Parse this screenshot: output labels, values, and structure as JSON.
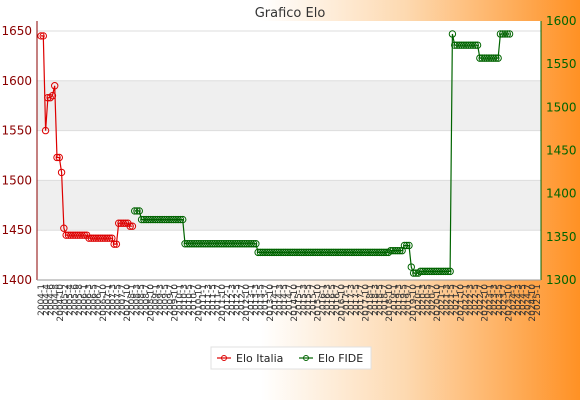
{
  "chart_data": {
    "type": "line",
    "title": "Grafico Elo",
    "xlabel": "",
    "ylabel": "",
    "y_left": {
      "ylim": [
        1400,
        1660
      ],
      "ticks": [
        1400,
        1450,
        1500,
        1550,
        1600,
        1650
      ]
    },
    "y_right": {
      "ylim": [
        1300,
        1600
      ],
      "ticks": [
        1300,
        1350,
        1400,
        1450,
        1500,
        1550,
        1600
      ]
    },
    "grid": true,
    "legend_position": "bottom-center",
    "series": [
      {
        "name": "Elo Italia",
        "color": "#dd0000",
        "axis": "left",
        "start_index": 0,
        "values": [
          1645,
          1645,
          1550,
          1583,
          1583,
          1585,
          1595,
          1523,
          1523,
          1508,
          1452,
          1445,
          1445,
          1445,
          1445,
          1445,
          1445,
          1445,
          1445,
          1445,
          1445,
          1442,
          1442,
          1442,
          1442,
          1442,
          1442,
          1442,
          1442,
          1442,
          1442,
          1442,
          1436,
          1436,
          1457,
          1457,
          1457,
          1457,
          1457,
          1454,
          1454
        ]
      },
      {
        "name": "Elo FIDE",
        "color": "#006400",
        "axis": "right",
        "start_index": 41,
        "values": [
          1380,
          1380,
          1380,
          1370,
          1370,
          1370,
          1370,
          1370,
          1370,
          1370,
          1370,
          1370,
          1370,
          1370,
          1370,
          1370,
          1370,
          1370,
          1370,
          1370,
          1370,
          1370,
          1342,
          1342,
          1342,
          1342,
          1342,
          1342,
          1342,
          1342,
          1342,
          1342,
          1342,
          1342,
          1342,
          1342,
          1342,
          1342,
          1342,
          1342,
          1342,
          1342,
          1342,
          1342,
          1342,
          1342,
          1342,
          1342,
          1342,
          1342,
          1342,
          1342,
          1342,
          1342,
          1332,
          1332,
          1332,
          1332,
          1332,
          1332,
          1332,
          1332,
          1332,
          1332,
          1332,
          1332,
          1332,
          1332,
          1332,
          1332,
          1332,
          1332,
          1332,
          1332,
          1332,
          1332,
          1332,
          1332,
          1332,
          1332,
          1332,
          1332,
          1332,
          1332,
          1332,
          1332,
          1332,
          1332,
          1332,
          1332,
          1332,
          1332,
          1332,
          1332,
          1332,
          1332,
          1332,
          1332,
          1332,
          1332,
          1332,
          1332,
          1332,
          1332,
          1332,
          1332,
          1332,
          1332,
          1332,
          1332,
          1332,
          1332,
          1334,
          1334,
          1334,
          1334,
          1334,
          1334,
          1340,
          1340,
          1340,
          1315,
          1308,
          1308,
          1308,
          1310,
          1310,
          1310,
          1310,
          1310,
          1310,
          1310,
          1310,
          1310,
          1310,
          1310,
          1310,
          1310,
          1310,
          1585,
          1572,
          1572,
          1572,
          1572,
          1572,
          1572,
          1572,
          1572,
          1572,
          1572,
          1572,
          1557,
          1557,
          1557,
          1557,
          1557,
          1557,
          1557,
          1557,
          1557,
          1585,
          1585,
          1585,
          1585,
          1585
        ]
      }
    ],
    "point_count": 218,
    "x_tick_labels": [
      "2004-1",
      "2004-4",
      "2004-6",
      "2004-8",
      "2004-10",
      "2005-2",
      "2005-4",
      "2005-6",
      "2005-8",
      "2006-1",
      "2006-3",
      "2006-5",
      "2006-7",
      "2006-10",
      "2007-1",
      "2007-3",
      "2007-5",
      "2007-7",
      "2007-10",
      "2008-1",
      "2008-3",
      "2008-5",
      "2008-7",
      "2008-10",
      "2009-1",
      "2009-3",
      "2009-5",
      "2009-7",
      "2009-10",
      "2010-1",
      "2010-3",
      "2010-5",
      "2010-7",
      "2010-10",
      "2011-1",
      "2011-3",
      "2011-5",
      "2011-7",
      "2011-10",
      "2012-1",
      "2012-3",
      "2012-5",
      "2012-7",
      "2012-10",
      "2013-1",
      "2013-3",
      "2013-5",
      "2013-7",
      "2013-10",
      "2014-1",
      "2014-3",
      "2014-5",
      "2014-7",
      "2014-10",
      "2015-1",
      "2015-3",
      "2015-5",
      "2015-7",
      "2015-10",
      "2016-1",
      "2016-3",
      "2016-5",
      "2016-7",
      "2016-10",
      "2017-1",
      "2017-3",
      "2017-5",
      "2017-7",
      "2017-10",
      "2018-1",
      "2018-3",
      "2018-5",
      "2018-7",
      "2018-10",
      "2019-1",
      "2019-3",
      "2019-5",
      "2019-7",
      "2019-10",
      "2020-1",
      "2020-3",
      "2020-5",
      "2020-7",
      "2020-10",
      "2021-1",
      "2021-3",
      "2021-5",
      "2021-7",
      "2021-10",
      "2022-1",
      "2022-3",
      "2022-5",
      "2022-7",
      "2022-10",
      "2023-1",
      "2023-3",
      "2023-5",
      "2023-7",
      "2023-10",
      "2024-1",
      "2024-3",
      "2024-5",
      "2024-7",
      "2024-10",
      "2025-1"
    ]
  },
  "colors": {
    "italia": "#dd0000",
    "fide": "#006400",
    "left_axis_text": "#8b0000",
    "right_axis_text": "#006400"
  }
}
